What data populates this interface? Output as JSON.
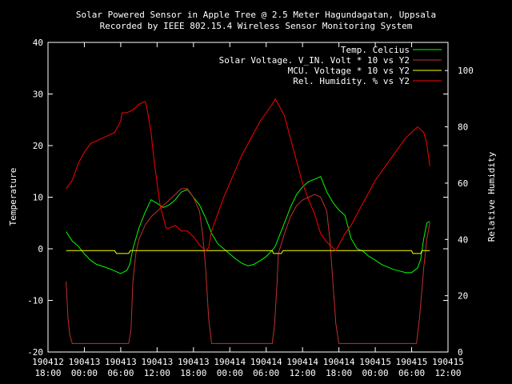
{
  "chart_data": {
    "type": "line",
    "title": "Solar Powered Sensor in Apple Tree @ 2.5 Meter Hagundagatan, Uppsala",
    "subtitle": "Recorded by IEEE 802.15.4 Wireless Sensor Monitoring System",
    "ylabel": "Temperature",
    "y2label": "Relative Humidity",
    "ylim": [
      -20,
      40
    ],
    "y2lim": [
      0,
      110
    ],
    "yticks": [
      "40",
      "30",
      "20",
      "10",
      "0",
      "-10",
      "-20"
    ],
    "y2ticks": [
      "100",
      "80",
      "60",
      "40",
      "20",
      "0"
    ],
    "xlim": [
      0,
      66
    ],
    "xticks": [
      {
        "date": "190412",
        "time": "18:00"
      },
      {
        "date": "190413",
        "time": "00:00"
      },
      {
        "date": "190413",
        "time": "06:00"
      },
      {
        "date": "190413",
        "time": "12:00"
      },
      {
        "date": "190413",
        "time": "18:00"
      },
      {
        "date": "190414",
        "time": "00:00"
      },
      {
        "date": "190414",
        "time": "06:00"
      },
      {
        "date": "190414",
        "time": "12:00"
      },
      {
        "date": "190414",
        "time": "18:00"
      },
      {
        "date": "190415",
        "time": "00:00"
      },
      {
        "date": "190415",
        "time": "06:00"
      },
      {
        "date": "190415",
        "time": "12:00"
      }
    ],
    "legend_position": "top-right",
    "series": [
      {
        "name": "Temp. Celcius",
        "color": "#00ff00",
        "axis": "y",
        "points": [
          [
            3,
            3.3
          ],
          [
            4,
            1.5
          ],
          [
            5,
            0.5
          ],
          [
            6,
            -1
          ],
          [
            7,
            -2.2
          ],
          [
            8,
            -3
          ],
          [
            9,
            -3.4
          ],
          [
            10,
            -3.8
          ],
          [
            11,
            -4.3
          ],
          [
            12,
            -4.8
          ],
          [
            13,
            -4.2
          ],
          [
            13.5,
            -3
          ],
          [
            14,
            0
          ],
          [
            15,
            4
          ],
          [
            16,
            7
          ],
          [
            17,
            9.5
          ],
          [
            18,
            8.8
          ],
          [
            19,
            8
          ],
          [
            20,
            8.5
          ],
          [
            21,
            9.5
          ],
          [
            22,
            11
          ],
          [
            23,
            11.5
          ],
          [
            24,
            10
          ],
          [
            25,
            8.5
          ],
          [
            26,
            6
          ],
          [
            27,
            3
          ],
          [
            28,
            1
          ],
          [
            29,
            0
          ],
          [
            30,
            -1
          ],
          [
            31,
            -2
          ],
          [
            32,
            -2.8
          ],
          [
            33,
            -3.3
          ],
          [
            34,
            -3
          ],
          [
            35,
            -2.3
          ],
          [
            36,
            -1.5
          ],
          [
            37,
            -0.3
          ],
          [
            37.5,
            0.5
          ],
          [
            38,
            2
          ],
          [
            39,
            5
          ],
          [
            40,
            8
          ],
          [
            41,
            10.5
          ],
          [
            42,
            12
          ],
          [
            43,
            13
          ],
          [
            44,
            13.5
          ],
          [
            45,
            14
          ],
          [
            46,
            11
          ],
          [
            47,
            9
          ],
          [
            48,
            7.5
          ],
          [
            49,
            6.5
          ],
          [
            50,
            2
          ],
          [
            51,
            0
          ],
          [
            52,
            -0.5
          ],
          [
            53,
            -1.5
          ],
          [
            54,
            -2.2
          ],
          [
            55,
            -3
          ],
          [
            56,
            -3.5
          ],
          [
            57,
            -4
          ],
          [
            58,
            -4.3
          ],
          [
            59,
            -4.6
          ],
          [
            60,
            -4.6
          ],
          [
            61,
            -3.7
          ],
          [
            61.5,
            -2
          ],
          [
            62,
            2
          ],
          [
            62.5,
            5
          ],
          [
            63,
            5.3
          ]
        ]
      },
      {
        "name": "Solar Voltage. V_IN. Volt * 10 vs Y2",
        "color": "#c03030",
        "axis": "y2",
        "points": [
          [
            3,
            25
          ],
          [
            3.3,
            12
          ],
          [
            3.6,
            6
          ],
          [
            4,
            3
          ],
          [
            5,
            3
          ],
          [
            8,
            3
          ],
          [
            12,
            3
          ],
          [
            13.3,
            3
          ],
          [
            13.7,
            8
          ],
          [
            14,
            25
          ],
          [
            14.5,
            35
          ],
          [
            15,
            40
          ],
          [
            16,
            45
          ],
          [
            17,
            48
          ],
          [
            18,
            50
          ],
          [
            19,
            52
          ],
          [
            20,
            54
          ],
          [
            21,
            56
          ],
          [
            22,
            58
          ],
          [
            23,
            58
          ],
          [
            24,
            55
          ],
          [
            25,
            50
          ],
          [
            25.5,
            42
          ],
          [
            26,
            30
          ],
          [
            26.5,
            12
          ],
          [
            27,
            3
          ],
          [
            30,
            3
          ],
          [
            35,
            3
          ],
          [
            37,
            3
          ],
          [
            37.4,
            10
          ],
          [
            37.8,
            25
          ],
          [
            38,
            35
          ],
          [
            39,
            42
          ],
          [
            40,
            48
          ],
          [
            41,
            52
          ],
          [
            42,
            54
          ],
          [
            43,
            55
          ],
          [
            44,
            56
          ],
          [
            45,
            55
          ],
          [
            46,
            50
          ],
          [
            46.5,
            40
          ],
          [
            47,
            25
          ],
          [
            47.5,
            10
          ],
          [
            48,
            3
          ],
          [
            52,
            3
          ],
          [
            58,
            3
          ],
          [
            60,
            3
          ],
          [
            60.8,
            3
          ],
          [
            61.3,
            12
          ],
          [
            62,
            30
          ],
          [
            62.5,
            40
          ],
          [
            63,
            46
          ]
        ]
      },
      {
        "name": "MCU. Voltage * 10 vs Y2",
        "color": "#ffff00",
        "axis": "y2",
        "points": [
          [
            3,
            36
          ],
          [
            11,
            36
          ],
          [
            11.3,
            35
          ],
          [
            13.3,
            35
          ],
          [
            13.6,
            36
          ],
          [
            37,
            36
          ],
          [
            37.2,
            35
          ],
          [
            38.5,
            35
          ],
          [
            38.8,
            36
          ],
          [
            60,
            36
          ],
          [
            60.2,
            35
          ],
          [
            61.5,
            35
          ],
          [
            61.7,
            36
          ],
          [
            63,
            36
          ]
        ]
      },
      {
        "name": "Rel. Humidity.  % vs Y2",
        "color": "#ff0000",
        "axis": "y2",
        "points": [
          [
            3,
            58
          ],
          [
            4,
            61
          ],
          [
            5,
            67
          ],
          [
            6,
            71
          ],
          [
            7,
            74
          ],
          [
            8,
            75
          ],
          [
            9,
            76
          ],
          [
            10,
            77
          ],
          [
            11,
            78
          ],
          [
            12,
            82
          ],
          [
            12.2,
            85
          ],
          [
            13,
            85
          ],
          [
            14,
            86
          ],
          [
            15,
            88
          ],
          [
            16,
            89
          ],
          [
            16.3,
            87
          ],
          [
            17,
            78
          ],
          [
            17.5,
            68
          ],
          [
            18,
            60
          ],
          [
            18.5,
            52
          ],
          [
            19,
            48
          ],
          [
            19.5,
            44
          ],
          [
            20,
            44
          ],
          [
            21,
            45
          ],
          [
            22,
            43
          ],
          [
            23,
            43
          ],
          [
            24,
            41
          ],
          [
            25,
            38
          ],
          [
            26,
            36
          ],
          [
            26.5,
            37
          ],
          [
            27,
            43
          ],
          [
            28,
            49
          ],
          [
            29,
            55
          ],
          [
            30,
            60
          ],
          [
            31,
            65
          ],
          [
            32,
            70
          ],
          [
            33,
            74
          ],
          [
            34,
            78
          ],
          [
            35,
            82
          ],
          [
            36,
            85
          ],
          [
            37,
            88
          ],
          [
            37.5,
            90
          ],
          [
            38,
            88
          ],
          [
            39,
            84
          ],
          [
            40,
            76
          ],
          [
            41,
            68
          ],
          [
            42,
            60
          ],
          [
            43,
            54
          ],
          [
            44,
            49
          ],
          [
            45,
            42
          ],
          [
            46,
            39
          ],
          [
            47,
            37
          ],
          [
            47.5,
            36
          ],
          [
            48,
            38
          ],
          [
            49,
            42
          ],
          [
            50,
            45
          ],
          [
            51,
            49
          ],
          [
            52,
            53
          ],
          [
            53,
            57
          ],
          [
            54,
            61
          ],
          [
            55,
            64
          ],
          [
            56,
            67
          ],
          [
            57,
            70
          ],
          [
            58,
            73
          ],
          [
            59,
            76
          ],
          [
            60,
            78
          ],
          [
            61,
            80
          ],
          [
            62,
            78
          ],
          [
            62.5,
            74
          ],
          [
            63,
            66
          ]
        ]
      }
    ]
  }
}
